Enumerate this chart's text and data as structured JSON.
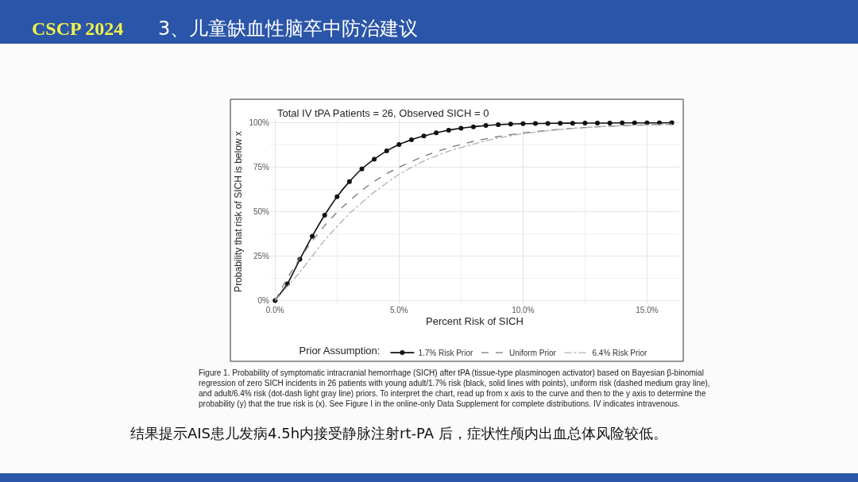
{
  "chart_data": {
    "type": "line",
    "title": "3、儿童缺血性脑卒中防治建议",
    "subtitle": "Total IV tPA Patients = 26, Observed SICH = 0",
    "xlabel": "Percent Risk of SICH",
    "ylabel": "Probability that risk of SICH is below x",
    "legend_title": "Prior Assumption:",
    "annotations": [
      "CSCP 2024",
      "Figure 1. Probability of symptomatic intracranial hemorrhage (SICH) after tPA (tissue-type plasminogen activator) based on Bayesian β-binomial regression of zero SICH incidents in 26 patients with young adult/1.7% risk (black, solid lines with points), uniform risk (dashed medium gray line), and adult/6.4% risk (dot-dash light gray line) priors. To interpret the chart, read up from x axis to the curve and then to the y axis to determine the probability (y) that the true risk is (x). See Figure I in the online-only Data Supplement for complete distributions. IV indicates intravenous.",
      "结果提示AIS患儿发病4.5h内接受静脉注射rt-PA 后，症状性颅内出血总体风险较低。"
    ],
    "series": [
      {
        "name": "1.7% Risk Prior",
        "color": "#111111",
        "marker": "circle",
        "line_style": "solid",
        "x": [
          0,
          0.5,
          1,
          1.5,
          2,
          2.5,
          3,
          3.5,
          4,
          4.5,
          5,
          5.5,
          6,
          6.5,
          7,
          7.5,
          8,
          8.5,
          9,
          9.5,
          10,
          10.5,
          11,
          11.5,
          12,
          12.5,
          13,
          13.5,
          14,
          14.5,
          15,
          15.5,
          16
        ],
        "values": [
          0,
          9.4,
          23.2,
          36.2,
          48,
          58.4,
          66.9,
          74,
          79.5,
          84.1,
          87.7,
          90.4,
          92.5,
          94.3,
          95.8,
          96.9,
          97.7,
          98.4,
          98.9,
          99.2,
          99.4,
          99.5,
          99.6,
          99.7,
          99.7,
          99.8,
          99.8,
          99.8,
          99.9,
          99.9,
          99.9,
          99.9,
          100
        ]
      },
      {
        "name": "Uniform Prior",
        "color": "#777777",
        "marker": "none",
        "line_style": "dashed",
        "x": [
          0,
          0.5,
          1,
          1.5,
          2,
          2.5,
          3,
          3.5,
          4,
          4.5,
          5,
          6,
          7,
          8,
          9,
          10,
          11,
          12,
          13,
          14,
          15,
          16
        ],
        "values": [
          0,
          12.7,
          23.8,
          33.5,
          42.1,
          49.7,
          56.1,
          62,
          67,
          71.3,
          75,
          81.2,
          85.9,
          89.5,
          92.2,
          94.2,
          95.7,
          96.8,
          97.7,
          98.3,
          98.8,
          99.1
        ]
      },
      {
        "name": "6.4% Risk Prior",
        "color": "#b0b0b0",
        "marker": "none",
        "line_style": "dashdot",
        "x": [
          0,
          1,
          2,
          3,
          4,
          5,
          6,
          7,
          8,
          9,
          10,
          11,
          12,
          13,
          14,
          15,
          16
        ],
        "values": [
          0,
          16,
          34,
          49,
          61,
          71,
          78.5,
          84,
          88,
          91.4,
          93.8,
          95.5,
          96.8,
          97.7,
          98.4,
          98.8,
          99.1
        ]
      }
    ],
    "xlim": [
      -0.2,
      16.3
    ],
    "xticks": [
      {
        "value": 0,
        "label": "0.0%"
      },
      {
        "value": 5,
        "label": "5.0%"
      },
      {
        "value": 10,
        "label": "10.0%"
      },
      {
        "value": 15,
        "label": "15.0%"
      }
    ],
    "ylim": [
      -2,
      102
    ],
    "yticks": [
      {
        "value": 0,
        "label": "0%"
      },
      {
        "value": 25,
        "label": "25%"
      },
      {
        "value": 50,
        "label": "50%"
      },
      {
        "value": 75,
        "label": "75%"
      },
      {
        "value": 100,
        "label": "100%"
      }
    ],
    "grid": true,
    "legend": "bottom"
  }
}
